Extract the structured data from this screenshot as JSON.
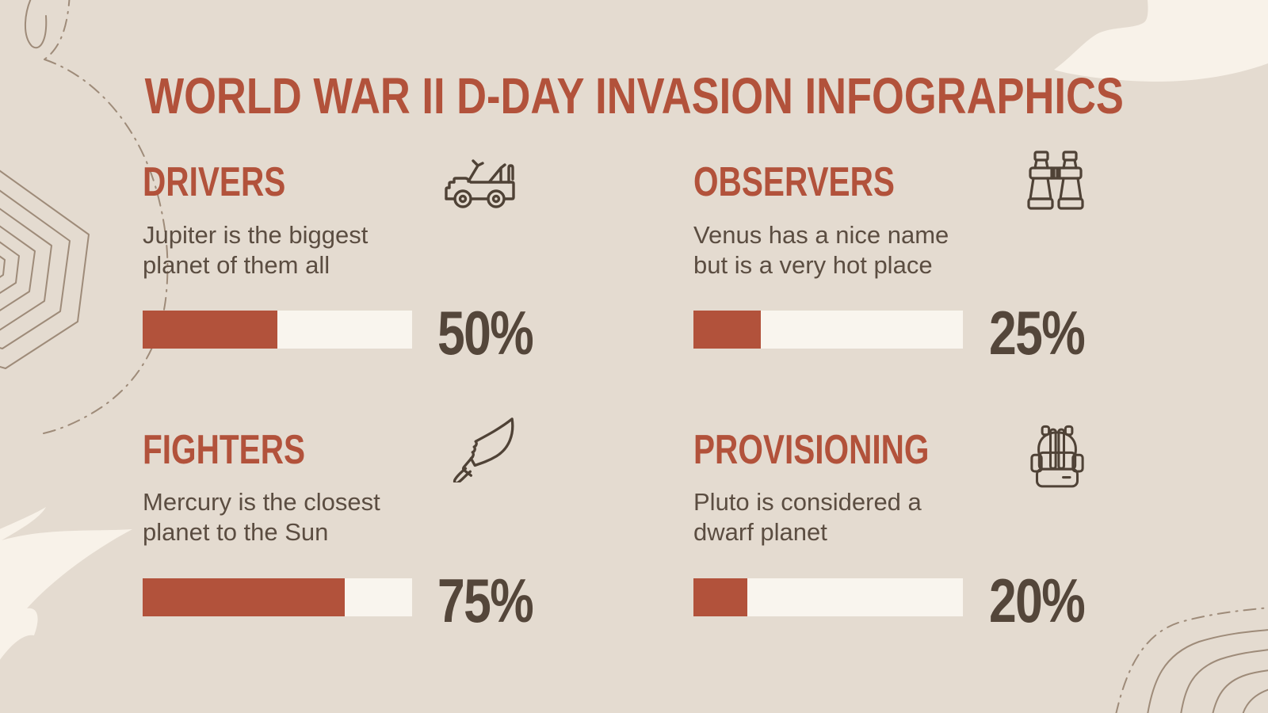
{
  "slide": {
    "title": "WORLD WAR II D-DAY INVASION INFOGRAPHICS"
  },
  "colors": {
    "background": "#e4dbd0",
    "accent_red": "#b2523b",
    "bar_track": "#f9f5ee",
    "percent_text": "#54463a",
    "body_text": "#5b4d41",
    "icon_stroke": "#4f4236",
    "contour_line": "#9e8b79",
    "cream_shape": "#f8f2e9"
  },
  "chart_data": {
    "type": "bar",
    "title": "WORLD WAR II D-DAY INVASION INFOGRAPHICS",
    "categories": [
      "DRIVERS",
      "OBSERVERS",
      "FIGHTERS",
      "PROVISIONING"
    ],
    "values": [
      50,
      25,
      75,
      20
    ],
    "value_labels": [
      "50%",
      "25%",
      "75%",
      "20%"
    ],
    "unit": "%",
    "xlim": [
      0,
      100
    ],
    "orientation": "horizontal",
    "legend": "none",
    "grid": "off"
  },
  "sections": [
    {
      "label": "DRIVERS",
      "icon": "jeep-icon",
      "description_line1": "Jupiter is the biggest",
      "description_line2": "planet of them all",
      "percent": 50,
      "percent_label": "50%"
    },
    {
      "label": "OBSERVERS",
      "icon": "binoculars-icon",
      "description_line1": "Venus has a nice name",
      "description_line2": "but is a very hot place",
      "percent": 25,
      "percent_label": "25%"
    },
    {
      "label": "FIGHTERS",
      "icon": "knife-icon",
      "description_line1": "Mercury is the closest",
      "description_line2": "planet to the Sun",
      "percent": 75,
      "percent_label": "75%"
    },
    {
      "label": "PROVISIONING",
      "icon": "backpack-icon",
      "description_line1": "Pluto is considered a",
      "description_line2": "dwarf planet",
      "percent": 20,
      "percent_label": "20%"
    }
  ]
}
